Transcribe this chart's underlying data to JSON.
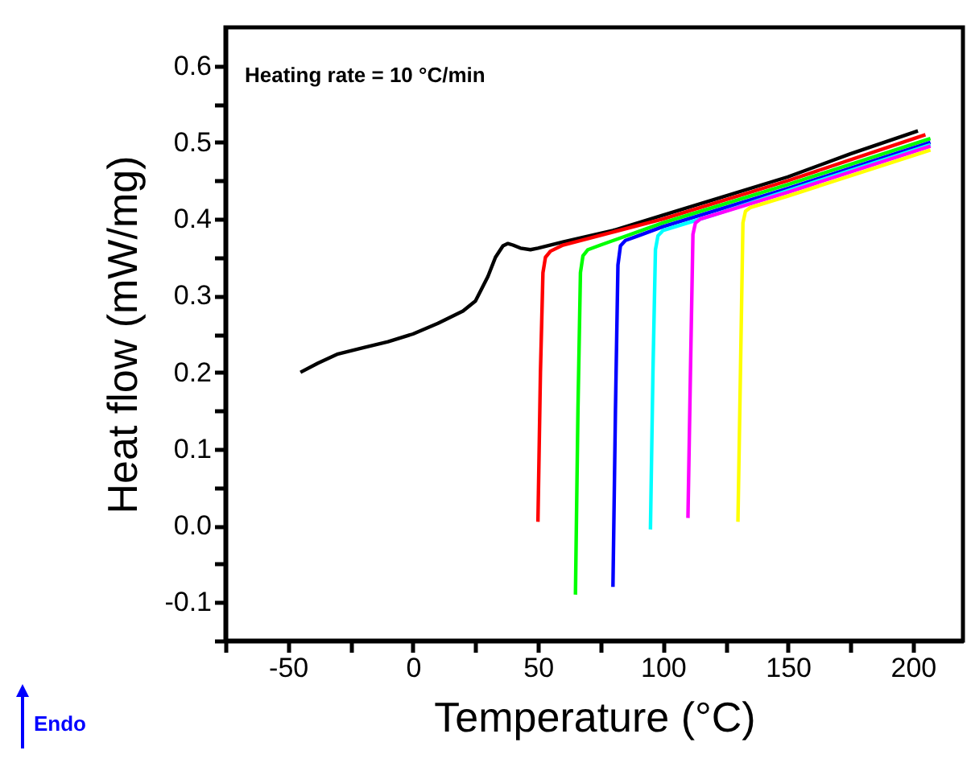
{
  "chart_data": {
    "type": "line",
    "xlabel": "Temperature (°C)",
    "ylabel": "Heat flow (mW/mg)",
    "annotations": [
      "Heating rate = 10 °C/min",
      "Endo"
    ],
    "xlim": [
      -75,
      220
    ],
    "ylim": [
      -0.15,
      0.65
    ],
    "xticks": [
      {
        "value": -75,
        "label": null
      },
      -50,
      {
        "value": -25,
        "label": null
      },
      0,
      {
        "value": 25,
        "label": null
      },
      50,
      {
        "value": 75,
        "label": null
      },
      100,
      {
        "value": 125,
        "label": null
      },
      150,
      {
        "value": 175,
        "label": null
      },
      200
    ],
    "yticks": [
      {
        "value": -0.15,
        "label": null
      },
      -0.1,
      {
        "value": -0.05,
        "label": null
      },
      {
        "value": 0,
        "label": "0.0"
      },
      {
        "value": 0.05,
        "label": null
      },
      0.1,
      {
        "value": 0.15,
        "label": null
      },
      0.2,
      {
        "value": 0.25,
        "label": null
      },
      0.3,
      {
        "value": 0.35,
        "label": null
      },
      0.4,
      {
        "value": 0.45,
        "label": null
      },
      0.5,
      {
        "value": 0.55,
        "label": null
      },
      0.6
    ],
    "grid": false,
    "line_style": "solid",
    "series": [
      {
        "color": "#000000",
        "x": [
          -45,
          -38,
          -30,
          -20,
          -10,
          0,
          10,
          20,
          25,
          30,
          33,
          36,
          38,
          40,
          43,
          47,
          50,
          60,
          80,
          100,
          120,
          150,
          175,
          202
        ],
        "values": [
          0.2,
          0.212,
          0.224,
          0.232,
          0.24,
          0.25,
          0.264,
          0.28,
          0.293,
          0.325,
          0.35,
          0.365,
          0.368,
          0.366,
          0.362,
          0.36,
          0.362,
          0.37,
          0.385,
          0.405,
          0.425,
          0.455,
          0.485,
          0.515
        ]
      },
      {
        "color": "#ff0000",
        "x": [
          50,
          51,
          52,
          53,
          55,
          60,
          80,
          100,
          150,
          205
        ],
        "values": [
          0.005,
          0.2,
          0.33,
          0.35,
          0.358,
          0.366,
          0.383,
          0.4,
          0.45,
          0.51
        ]
      },
      {
        "color": "#00ff00",
        "x": [
          65,
          66,
          67,
          68,
          70,
          75,
          100,
          150,
          207
        ],
        "values": [
          -0.09,
          0.15,
          0.33,
          0.352,
          0.36,
          0.366,
          0.395,
          0.445,
          0.505
        ]
      },
      {
        "color": "#0000ff",
        "x": [
          80,
          81,
          82,
          83,
          85,
          90,
          100,
          150,
          207
        ],
        "values": [
          -0.08,
          0.15,
          0.34,
          0.365,
          0.372,
          0.378,
          0.39,
          0.44,
          0.5
        ]
      },
      {
        "color": "#00ffff",
        "x": [
          95,
          96,
          97,
          98,
          100,
          105,
          120,
          150,
          207
        ],
        "values": [
          -0.005,
          0.2,
          0.36,
          0.378,
          0.385,
          0.39,
          0.405,
          0.437,
          0.497
        ]
      },
      {
        "color": "#ff00ff",
        "x": [
          110,
          111,
          112,
          113,
          115,
          120,
          130,
          150,
          207
        ],
        "values": [
          0.01,
          0.2,
          0.38,
          0.395,
          0.4,
          0.405,
          0.415,
          0.435,
          0.495
        ]
      },
      {
        "color": "#ffff00",
        "x": [
          130,
          131,
          132,
          133,
          135,
          140,
          150,
          207
        ],
        "values": [
          0.005,
          0.2,
          0.395,
          0.41,
          0.415,
          0.42,
          0.43,
          0.49
        ]
      }
    ]
  }
}
